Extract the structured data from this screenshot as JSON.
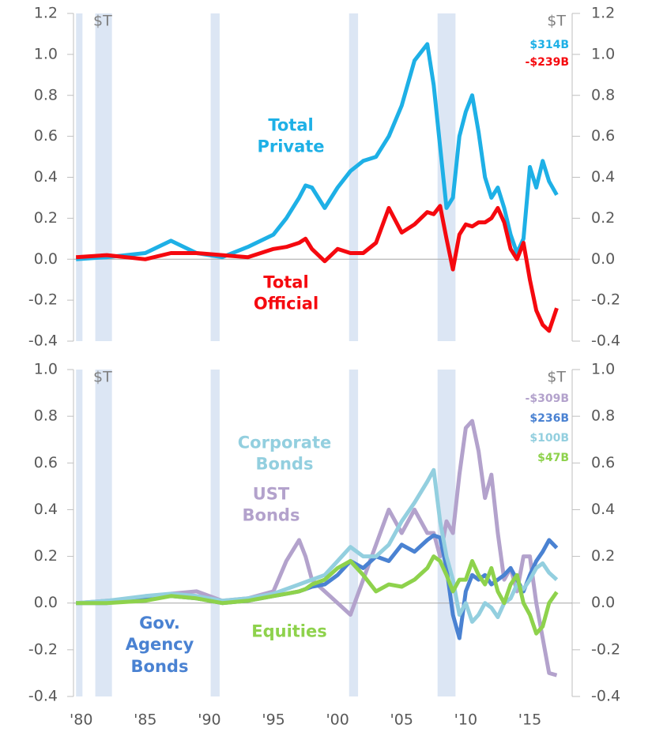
{
  "chart_data": [
    {
      "type": "line",
      "y_unit": "$T",
      "y2_unit": "$T",
      "xlim": [
        1979.4,
        2018.3
      ],
      "ylim": [
        -0.4,
        1.2
      ],
      "y2lim": [
        -0.4,
        1.2
      ],
      "yticks": [
        {
          "value": -0.4,
          "label": "-0.4"
        },
        {
          "value": -0.2,
          "label": "-0.2"
        },
        {
          "value": 0,
          "label": "0.0"
        },
        {
          "value": 0.2,
          "label": "0.2"
        },
        {
          "value": 0.4,
          "label": "0.4"
        },
        {
          "value": 0.6,
          "label": "0.6"
        },
        {
          "value": 0.8,
          "label": "0.8"
        },
        {
          "value": 1,
          "label": "1.0"
        },
        {
          "value": 1.2,
          "label": "1.2"
        }
      ],
      "y2ticks": [
        {
          "value": -0.4,
          "label": "-0.4"
        },
        {
          "value": -0.2,
          "label": "-0.2"
        },
        {
          "value": 0,
          "label": "0.0"
        },
        {
          "value": 0.2,
          "label": "0.2"
        },
        {
          "value": 0.4,
          "label": "0.4"
        },
        {
          "value": 0.6,
          "label": "0.6"
        },
        {
          "value": 0.8,
          "label": "0.8"
        },
        {
          "value": 1,
          "label": "1.0"
        },
        {
          "value": 1.2,
          "label": "1.2"
        }
      ],
      "shaded_spans": [
        [
          1979.6,
          1980.1
        ],
        [
          1981.1,
          1982.4
        ],
        [
          1990.1,
          1990.8
        ],
        [
          2000.9,
          2001.6
        ],
        [
          2007.8,
          2009.2
        ]
      ],
      "x": [
        1979.6,
        1982,
        1985,
        1987,
        1989,
        1991,
        1993,
        1995,
        1996,
        1997,
        1997.5,
        1998,
        1999,
        2000,
        2001,
        2002,
        2003,
        2004,
        2005,
        2006,
        2007,
        2007.5,
        2008,
        2008.5,
        2009,
        2009.5,
        2010,
        2010.5,
        2011,
        2011.5,
        2012,
        2012.5,
        2013,
        2013.5,
        2014,
        2014.5,
        2015,
        2015.5,
        2016,
        2016.5,
        2017.1
      ],
      "series": [
        {
          "name": "Total Private",
          "color": "#1eb0e6",
          "values": [
            0.0,
            0.01,
            0.03,
            0.09,
            0.03,
            0.01,
            0.06,
            0.12,
            0.2,
            0.3,
            0.36,
            0.35,
            0.25,
            0.35,
            0.43,
            0.48,
            0.5,
            0.6,
            0.75,
            0.97,
            1.05,
            0.85,
            0.55,
            0.25,
            0.3,
            0.6,
            0.72,
            0.8,
            0.62,
            0.4,
            0.3,
            0.35,
            0.25,
            0.12,
            0.03,
            0.1,
            0.45,
            0.35,
            0.48,
            0.38,
            0.314
          ],
          "value_labels": [
            null,
            null,
            null,
            null,
            null,
            null,
            null,
            null,
            null,
            null,
            null,
            null,
            null,
            null,
            null,
            null,
            null,
            null,
            null,
            null,
            null,
            null,
            null,
            null,
            null,
            null,
            null,
            null,
            null,
            null,
            null,
            null,
            null,
            null,
            null,
            null,
            null,
            null,
            null,
            null,
            "$314B"
          ]
        },
        {
          "name": "Total Official",
          "color": "#f5090f",
          "values": [
            0.01,
            0.02,
            0.0,
            0.03,
            0.03,
            0.02,
            0.01,
            0.05,
            0.06,
            0.08,
            0.1,
            0.05,
            -0.01,
            0.05,
            0.03,
            0.03,
            0.08,
            0.25,
            0.13,
            0.17,
            0.23,
            0.22,
            0.26,
            0.1,
            -0.05,
            0.12,
            0.17,
            0.16,
            0.18,
            0.18,
            0.2,
            0.25,
            0.18,
            0.05,
            0.0,
            0.08,
            -0.1,
            -0.25,
            -0.32,
            -0.35,
            -0.239
          ],
          "value_labels": [
            null,
            null,
            null,
            null,
            null,
            null,
            null,
            null,
            null,
            null,
            null,
            null,
            null,
            null,
            null,
            null,
            null,
            null,
            null,
            null,
            null,
            null,
            null,
            null,
            null,
            null,
            null,
            null,
            null,
            null,
            null,
            null,
            null,
            null,
            null,
            null,
            null,
            null,
            null,
            null,
            "-$239B"
          ]
        }
      ]
    },
    {
      "type": "line",
      "y_unit": "$T",
      "y2_unit": "$T",
      "xlim": [
        1979.4,
        2018.3
      ],
      "ylim": [
        -0.4,
        1.0
      ],
      "y2lim": [
        -0.4,
        1.0
      ],
      "yticks": [
        {
          "value": -0.4,
          "label": "-0.4"
        },
        {
          "value": -0.2,
          "label": "-0.2"
        },
        {
          "value": 0,
          "label": "0.0"
        },
        {
          "value": 0.2,
          "label": "0.2"
        },
        {
          "value": 0.4,
          "label": "0.4"
        },
        {
          "value": 0.6,
          "label": "0.6"
        },
        {
          "value": 0.8,
          "label": "0.8"
        },
        {
          "value": 1,
          "label": "1.0"
        }
      ],
      "y2ticks": [
        {
          "value": -0.4,
          "label": "-0.4"
        },
        {
          "value": -0.2,
          "label": "-0.2"
        },
        {
          "value": 0,
          "label": "0.0"
        },
        {
          "value": 0.2,
          "label": "0.2"
        },
        {
          "value": 0.4,
          "label": "0.4"
        },
        {
          "value": 0.6,
          "label": "0.6"
        },
        {
          "value": 0.8,
          "label": "0.8"
        },
        {
          "value": 1,
          "label": "1.0"
        }
      ],
      "xticks": [
        {
          "value": 1980,
          "label": "'80"
        },
        {
          "value": 1985,
          "label": "'85"
        },
        {
          "value": 1990,
          "label": "'90"
        },
        {
          "value": 1995,
          "label": "'95"
        },
        {
          "value": 2000,
          "label": "'00"
        },
        {
          "value": 2005,
          "label": "'05"
        },
        {
          "value": 2010,
          "label": "'10"
        },
        {
          "value": 2015,
          "label": "'15"
        }
      ],
      "shaded_spans": [
        [
          1979.6,
          1980.1
        ],
        [
          1981.1,
          1982.4
        ],
        [
          1990.1,
          1990.8
        ],
        [
          2000.9,
          2001.6
        ],
        [
          2007.8,
          2009.2
        ]
      ],
      "x": [
        1979.6,
        1982,
        1985,
        1987,
        1989,
        1991,
        1993,
        1995,
        1996,
        1997,
        1997.5,
        1998,
        1999,
        2000,
        2001,
        2002,
        2003,
        2004,
        2005,
        2006,
        2007,
        2007.5,
        2008,
        2008.5,
        2009,
        2009.5,
        2010,
        2010.5,
        2011,
        2011.5,
        2012,
        2012.5,
        2013,
        2013.5,
        2014,
        2014.5,
        2015,
        2015.5,
        2016,
        2016.5,
        2017.1
      ],
      "series": [
        {
          "name": "UST Bonds",
          "color": "#b3a2cc",
          "values": [
            0.0,
            0.01,
            0.02,
            0.04,
            0.05,
            0.01,
            0.02,
            0.05,
            0.18,
            0.27,
            0.2,
            0.1,
            0.05,
            0.0,
            -0.05,
            0.1,
            0.25,
            0.4,
            0.3,
            0.4,
            0.3,
            0.3,
            0.2,
            0.35,
            0.3,
            0.55,
            0.75,
            0.78,
            0.65,
            0.45,
            0.55,
            0.3,
            0.1,
            0.15,
            0.05,
            0.2,
            0.2,
            0.0,
            -0.15,
            -0.3,
            -0.309
          ],
          "value_labels": [
            null,
            null,
            null,
            null,
            null,
            null,
            null,
            null,
            null,
            null,
            null,
            null,
            null,
            null,
            null,
            null,
            null,
            null,
            null,
            null,
            null,
            null,
            null,
            null,
            null,
            null,
            null,
            null,
            null,
            null,
            null,
            null,
            null,
            null,
            null,
            null,
            null,
            null,
            null,
            null,
            "-$309B"
          ]
        },
        {
          "name": "Gov. Agency Bonds",
          "color": "#4a82d2",
          "values": [
            0.0,
            0.0,
            0.02,
            0.03,
            0.02,
            0.0,
            0.01,
            0.03,
            0.04,
            0.05,
            0.06,
            0.07,
            0.08,
            0.12,
            0.18,
            0.15,
            0.2,
            0.18,
            0.25,
            0.22,
            0.27,
            0.29,
            0.28,
            0.15,
            -0.05,
            -0.15,
            0.05,
            0.12,
            0.1,
            0.12,
            0.08,
            0.1,
            0.12,
            0.15,
            0.1,
            0.05,
            0.12,
            0.18,
            0.22,
            0.27,
            0.236
          ],
          "value_labels": [
            null,
            null,
            null,
            null,
            null,
            null,
            null,
            null,
            null,
            null,
            null,
            null,
            null,
            null,
            null,
            null,
            null,
            null,
            null,
            null,
            null,
            null,
            null,
            null,
            null,
            null,
            null,
            null,
            null,
            null,
            null,
            null,
            null,
            null,
            null,
            null,
            null,
            null,
            null,
            null,
            "$236B"
          ]
        },
        {
          "name": "Corporate Bonds",
          "color": "#93cfdf",
          "values": [
            0.0,
            0.01,
            0.03,
            0.04,
            0.03,
            0.01,
            0.02,
            0.04,
            0.06,
            0.08,
            0.09,
            0.1,
            0.12,
            0.18,
            0.24,
            0.2,
            0.2,
            0.25,
            0.35,
            0.43,
            0.52,
            0.57,
            0.35,
            0.2,
            0.1,
            -0.05,
            0.0,
            -0.08,
            -0.05,
            0.0,
            -0.02,
            -0.06,
            0.0,
            0.02,
            0.08,
            0.06,
            0.1,
            0.15,
            0.17,
            0.13,
            0.1
          ],
          "value_labels": [
            null,
            null,
            null,
            null,
            null,
            null,
            null,
            null,
            null,
            null,
            null,
            null,
            null,
            null,
            null,
            null,
            null,
            null,
            null,
            null,
            null,
            null,
            null,
            null,
            null,
            null,
            null,
            null,
            null,
            null,
            null,
            null,
            null,
            null,
            null,
            null,
            null,
            null,
            null,
            null,
            "$100B"
          ]
        },
        {
          "name": "Equities",
          "color": "#8ed24c",
          "values": [
            0.0,
            0.0,
            0.01,
            0.03,
            0.02,
            0.0,
            0.01,
            0.03,
            0.04,
            0.05,
            0.06,
            0.08,
            0.1,
            0.15,
            0.18,
            0.12,
            0.05,
            0.08,
            0.07,
            0.1,
            0.15,
            0.2,
            0.18,
            0.12,
            0.05,
            0.1,
            0.1,
            0.18,
            0.12,
            0.08,
            0.15,
            0.05,
            0.0,
            0.08,
            0.12,
            0.0,
            -0.05,
            -0.13,
            -0.1,
            0.0,
            0.047
          ],
          "value_labels": [
            null,
            null,
            null,
            null,
            null,
            null,
            null,
            null,
            null,
            null,
            null,
            null,
            null,
            null,
            null,
            null,
            null,
            null,
            null,
            null,
            null,
            null,
            null,
            null,
            null,
            null,
            null,
            null,
            null,
            null,
            null,
            null,
            null,
            null,
            null,
            null,
            null,
            null,
            null,
            null,
            "$47B"
          ]
        }
      ]
    }
  ]
}
